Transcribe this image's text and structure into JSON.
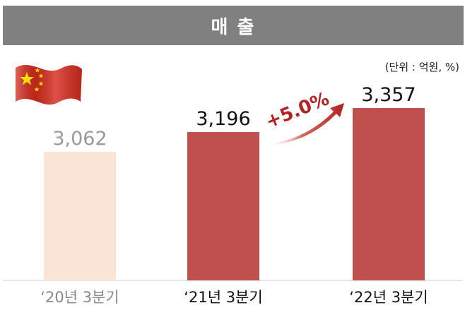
{
  "header": {
    "title": "매 출"
  },
  "unit_label": "(단위 : 억원, %)",
  "growth_label": "+5.0%",
  "colors": {
    "title_bg": "#808080",
    "bar_prev": "#f9e4d6",
    "bar_main": "#c0504d",
    "label_prev": "#9a9a9a",
    "label_main": "#111111",
    "arrow": "#b22222",
    "flag_red": "#d52b1e",
    "flag_star": "#ffde00"
  },
  "flag": {
    "icon": "china-flag-icon"
  },
  "chart_data": {
    "type": "bar",
    "title": "매 출",
    "categories": [
      "‘20년 3분기",
      "‘21년 3분기",
      "‘22년 3분기"
    ],
    "values": [
      3062,
      3196,
      3357
    ],
    "value_labels": [
      "3,062",
      "3,196",
      "3,357"
    ],
    "ylim": [
      0,
      3500
    ],
    "grid": false,
    "annotation": {
      "text": "+5.0%",
      "from": "‘21년 3분기",
      "to": "‘22년 3분기"
    }
  }
}
